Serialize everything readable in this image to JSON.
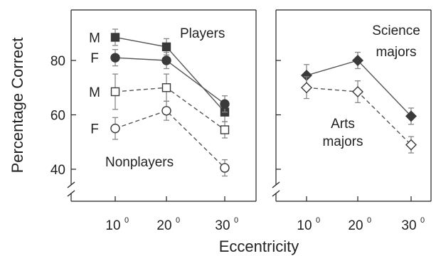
{
  "chart_data": [
    {
      "type": "line",
      "panel": "left",
      "ylabel": "Percentage Correct",
      "x": [
        10,
        20,
        30
      ],
      "x_tick_labels": [
        {
          "num": "10",
          "sup": "0"
        },
        {
          "num": "20",
          "sup": "0"
        },
        {
          "num": "30",
          "sup": "0"
        }
      ],
      "ylim": [
        34,
        97
      ],
      "y_ticks": [
        40,
        60,
        80
      ],
      "y_tick_labels": [
        "40",
        "60",
        "80"
      ],
      "axis_break": true,
      "grid": false,
      "annotations": [
        "Players",
        "Nonplayers"
      ],
      "series": [
        {
          "name": "M",
          "group": "Players",
          "y": [
            88.5,
            85,
            61
          ],
          "err": [
            3,
            3,
            3.5
          ],
          "marker": "square",
          "fill": "filled",
          "line": "solid"
        },
        {
          "name": "F",
          "group": "Players",
          "y": [
            81,
            80,
            64
          ],
          "err": [
            3,
            3,
            3
          ],
          "marker": "circle",
          "fill": "filled",
          "line": "solid"
        },
        {
          "name": "M",
          "group": "Nonplayers",
          "y": [
            68.5,
            70,
            54.5
          ],
          "err": [
            6.5,
            5,
            3
          ],
          "marker": "square",
          "fill": "open",
          "line": "dashed"
        },
        {
          "name": "F",
          "group": "Nonplayers",
          "y": [
            55,
            61.5,
            40.5
          ],
          "err": [
            4,
            3.5,
            3
          ],
          "marker": "circle",
          "fill": "open",
          "line": "dashed"
        }
      ]
    },
    {
      "type": "line",
      "panel": "right",
      "x": [
        10,
        20,
        30
      ],
      "x_tick_labels": [
        {
          "num": "10",
          "sup": "0"
        },
        {
          "num": "20",
          "sup": "0"
        },
        {
          "num": "30",
          "sup": "0"
        }
      ],
      "ylim": [
        34,
        97
      ],
      "y_ticks": [
        40,
        60,
        80
      ],
      "axis_break": true,
      "grid": false,
      "series": [
        {
          "name": "Science majors",
          "label_lines": [
            "Science",
            "majors"
          ],
          "y": [
            74.5,
            80,
            59.5
          ],
          "err": [
            4,
            3,
            3
          ],
          "marker": "diamond",
          "fill": "filled",
          "line": "solid"
        },
        {
          "name": "Arts majors",
          "label_lines": [
            "Arts",
            "majors"
          ],
          "y": [
            70,
            68.5,
            49
          ],
          "err": [
            4,
            4,
            3
          ],
          "marker": "diamond",
          "fill": "open",
          "line": "dashed"
        }
      ]
    }
  ],
  "xlabel": "Eccentricity",
  "colors": {
    "ink": "#222222",
    "line": "#555555",
    "filled_marker": "#3a3a3a",
    "open_marker": "#ffffff",
    "error_bar": "#888888"
  }
}
